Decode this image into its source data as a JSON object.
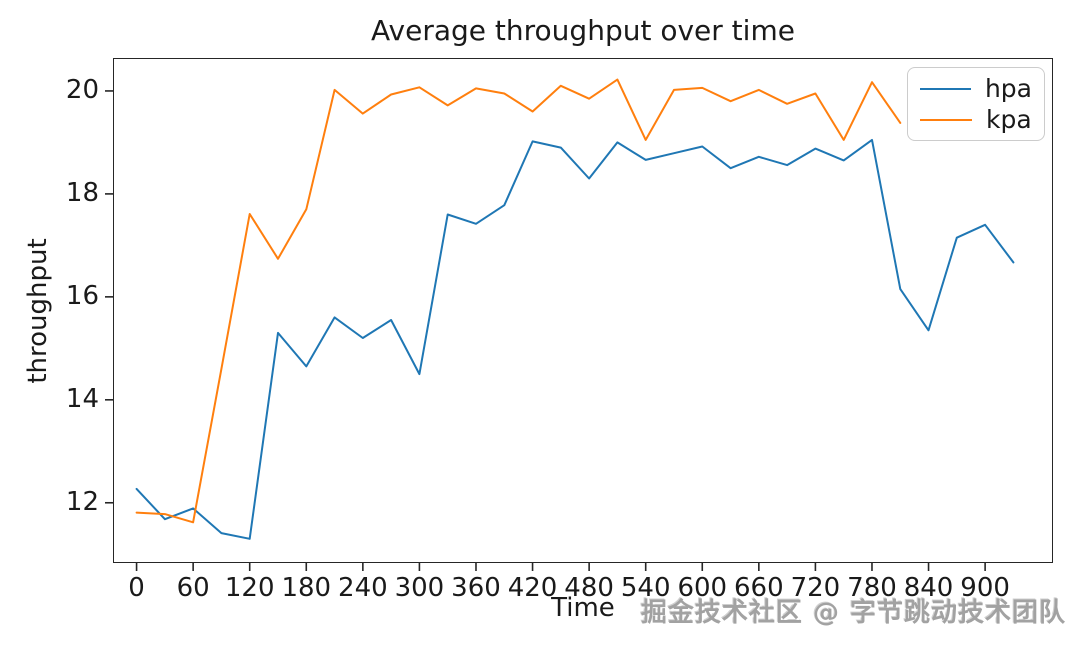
{
  "watermark_text": "掘金技术社区 @ 字节跳动技术团队",
  "chart_data": {
    "type": "line",
    "title": "Average throughput over time",
    "xlabel": "Time",
    "ylabel": "throughput",
    "x_ticks": [
      0,
      60,
      120,
      180,
      240,
      300,
      360,
      420,
      480,
      540,
      600,
      660,
      720,
      780,
      840,
      900
    ],
    "y_ticks": [
      12,
      14,
      16,
      18,
      20
    ],
    "xlim": [
      -25,
      972
    ],
    "ylim": [
      10.83,
      20.64
    ],
    "grid": false,
    "legend_position": "upper right",
    "series": [
      {
        "name": "hpa",
        "color": "#1f77b4",
        "x": [
          0,
          30,
          60,
          90,
          120,
          150,
          180,
          210,
          240,
          270,
          300,
          330,
          360,
          390,
          420,
          450,
          480,
          510,
          540,
          570,
          600,
          630,
          660,
          690,
          720,
          750,
          780,
          810,
          840,
          870,
          900,
          930
        ],
        "y": [
          12.27,
          11.68,
          11.89,
          11.41,
          11.3,
          15.3,
          14.65,
          15.6,
          15.2,
          15.55,
          14.5,
          17.6,
          17.42,
          17.78,
          19.02,
          18.9,
          18.3,
          19.0,
          18.66,
          18.79,
          18.92,
          18.5,
          18.72,
          18.56,
          18.88,
          18.65,
          19.05,
          16.15,
          15.35,
          17.15,
          17.4,
          16.67
        ]
      },
      {
        "name": "kpa",
        "color": "#ff7f0e",
        "x": [
          0,
          30,
          60,
          90,
          120,
          150,
          180,
          210,
          240,
          270,
          300,
          330,
          360,
          390,
          420,
          450,
          480,
          510,
          540,
          570,
          600,
          630,
          660,
          690,
          720,
          750,
          780,
          810
        ],
        "y": [
          11.81,
          11.78,
          11.62,
          14.6,
          17.61,
          16.74,
          17.7,
          20.02,
          19.56,
          19.93,
          20.07,
          19.72,
          20.05,
          19.95,
          19.6,
          20.1,
          19.85,
          20.22,
          19.05,
          20.02,
          20.06,
          19.8,
          20.02,
          19.75,
          19.95,
          19.05,
          20.17,
          19.38
        ]
      }
    ]
  }
}
